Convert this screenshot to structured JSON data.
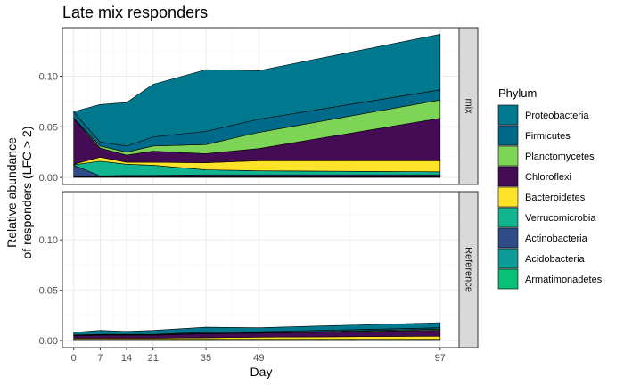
{
  "chart_data": {
    "type": "area",
    "stacked": true,
    "title": "Late mix responders",
    "xlabel": "Day",
    "ylabel_lines": [
      "Relative abundance",
      "of responders (LFC > 2)"
    ],
    "x": [
      0,
      7,
      14,
      21,
      35,
      49,
      97
    ],
    "x_ticks": [
      "0",
      "7",
      "14",
      "21",
      "35",
      "49",
      "97"
    ],
    "xlim": [
      -3,
      102
    ],
    "ylim": [
      -0.007,
      0.148
    ],
    "y_ticks": [
      "0.00",
      "0.05",
      "0.10"
    ],
    "y_tick_values": [
      0.0,
      0.05,
      0.1
    ],
    "grid": true,
    "legend_position": "right",
    "legend_title": "Phylum",
    "panels": [
      {
        "strip_label": "mix",
        "series": [
          {
            "name": "Armatimonadetes",
            "values": [
              0.0005,
              0.0005,
              0.0005,
              0.0005,
              0.0005,
              0.0005,
              0.0005
            ]
          },
          {
            "name": "Acidobacteria",
            "values": [
              0.0005,
              0.0005,
              0.0005,
              0.0005,
              0.0005,
              0.0005,
              0.0005
            ]
          },
          {
            "name": "Actinobacteria",
            "values": [
              0.011,
              0.0005,
              0.001,
              0.001,
              0.0015,
              0.0015,
              0.0015
            ]
          },
          {
            "name": "Verrucomicrobia",
            "values": [
              0.0005,
              0.0145,
              0.011,
              0.01,
              0.005,
              0.004,
              0.003
            ]
          },
          {
            "name": "Bacteroidetes",
            "values": [
              0.0005,
              0.004,
              0.002,
              0.003,
              0.007,
              0.01,
              0.011
            ]
          },
          {
            "name": "Chloroflexi",
            "values": [
              0.045,
              0.009,
              0.007,
              0.011,
              0.009,
              0.012,
              0.042
            ]
          },
          {
            "name": "Planctomycetes",
            "values": [
              0.0005,
              0.002,
              0.003,
              0.005,
              0.009,
              0.016,
              0.018
            ]
          },
          {
            "name": "Firmicutes",
            "values": [
              0.006,
              0.004,
              0.006,
              0.009,
              0.013,
              0.013,
              0.01
            ]
          },
          {
            "name": "Proteobacteria",
            "values": [
              0.0005,
              0.037,
              0.043,
              0.052,
              0.061,
              0.048,
              0.055
            ]
          }
        ]
      },
      {
        "strip_label": "Reference",
        "series": [
          {
            "name": "Armatimonadetes",
            "values": [
              0.0003,
              0.0003,
              0.0003,
              0.0003,
              0.0003,
              0.0003,
              0.0003
            ]
          },
          {
            "name": "Acidobacteria",
            "values": [
              0.0003,
              0.0003,
              0.0003,
              0.0003,
              0.0003,
              0.0003,
              0.0003
            ]
          },
          {
            "name": "Actinobacteria",
            "values": [
              0.0003,
              0.0003,
              0.0003,
              0.0003,
              0.0003,
              0.0003,
              0.0003
            ]
          },
          {
            "name": "Verrucomicrobia",
            "values": [
              0.0004,
              0.0004,
              0.0004,
              0.0004,
              0.0004,
              0.0004,
              0.0004
            ]
          },
          {
            "name": "Bacteroidetes",
            "values": [
              0.001,
              0.001,
              0.001,
              0.001,
              0.0015,
              0.002,
              0.003
            ]
          },
          {
            "name": "Chloroflexi",
            "values": [
              0.0025,
              0.003,
              0.003,
              0.003,
              0.004,
              0.004,
              0.006
            ]
          },
          {
            "name": "Planctomycetes",
            "values": [
              0.0003,
              0.0003,
              0.0003,
              0.0003,
              0.0005,
              0.0005,
              0.001
            ]
          },
          {
            "name": "Firmicutes",
            "values": [
              0.0005,
              0.0005,
              0.0005,
              0.0005,
              0.001,
              0.001,
              0.0015
            ]
          },
          {
            "name": "Proteobacteria",
            "values": [
              0.0025,
              0.004,
              0.003,
              0.004,
              0.005,
              0.004,
              0.005
            ]
          }
        ]
      }
    ],
    "legend": [
      {
        "name": "Proteobacteria",
        "color": "#00798E"
      },
      {
        "name": "Firmicutes",
        "color": "#006A8A"
      },
      {
        "name": "Planctomycetes",
        "color": "#7ED457"
      },
      {
        "name": "Chloroflexi",
        "color": "#440C55"
      },
      {
        "name": "Bacteroidetes",
        "color": "#FDE22A"
      },
      {
        "name": "Verrucomicrobia",
        "color": "#12B591"
      },
      {
        "name": "Actinobacteria",
        "color": "#2F4C89"
      },
      {
        "name": "Acidobacteria",
        "color": "#0D9C97"
      },
      {
        "name": "Armatimonadetes",
        "color": "#08C176"
      }
    ],
    "colors": {
      "panel_border": "#333333",
      "grid_major": "#EBEBEB",
      "grid_minor": "#F5F5F5",
      "strip_fill": "#D9D9D9",
      "area_outline": "#000000"
    }
  }
}
